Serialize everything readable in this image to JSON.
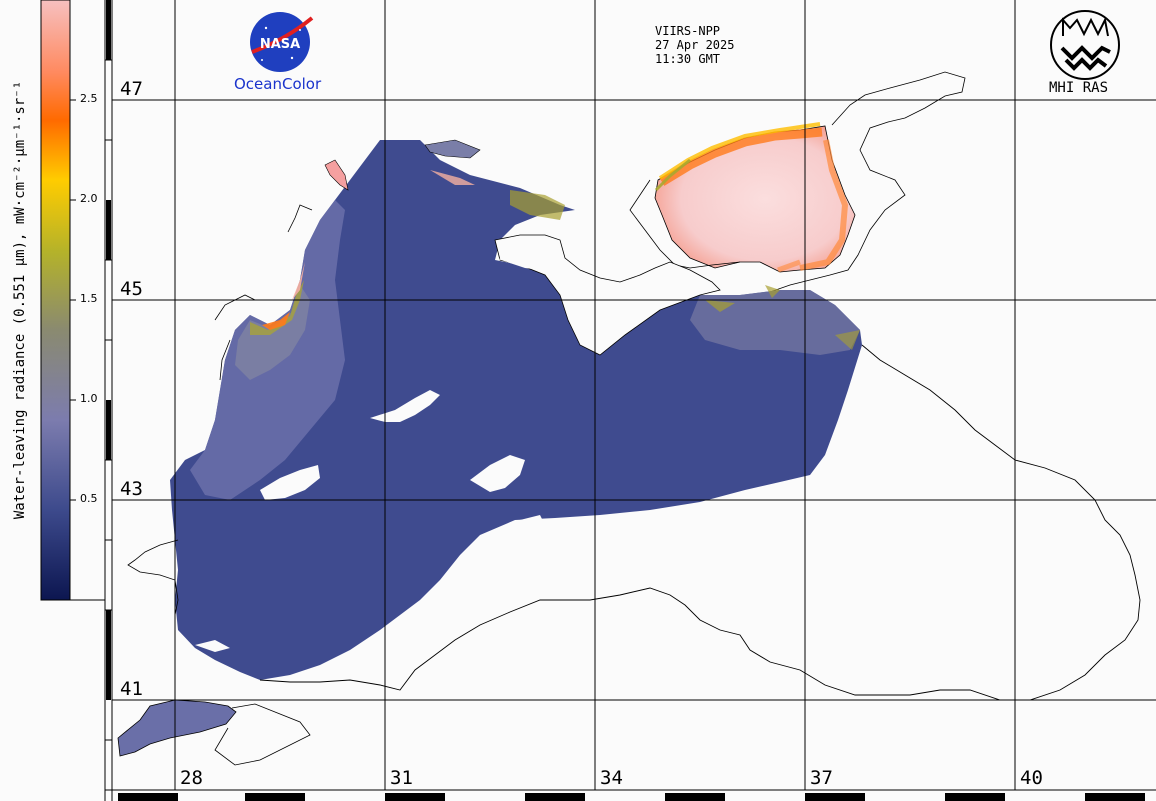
{
  "header": {
    "sensor": "VIIRS-NPP",
    "date": "27 Apr 2025",
    "time": "11:30 GMT"
  },
  "logos": {
    "nasa_wordmark": "NASA",
    "oceancolor": "OceanColor",
    "mhi": "MHI RAS"
  },
  "colorbar": {
    "title": "Water-leaving radiance (0.551 µm), mW·cm⁻²·µm⁻¹·sr⁻¹",
    "ticks": [
      "2.5",
      "2.0",
      "1.5",
      "1.0",
      "0.5"
    ],
    "colors": [
      "#f7b7b7",
      "#ff5a1e",
      "#ffd400",
      "#aab02a",
      "#8d8cb0",
      "#3a4a8c",
      "#10205a"
    ]
  },
  "grid": {
    "latitudes": [
      "47",
      "45",
      "43",
      "41"
    ],
    "longitudes": [
      "28",
      "31",
      "34",
      "37",
      "40"
    ]
  },
  "palette": {
    "sea": "#3f4b8f",
    "sea_light": "#6a6fa8",
    "coastal_green": "#9a9a3a",
    "azov_pink": "#f9d6d6",
    "azov_orange": "#ff7a1a",
    "grid_line": "#000000"
  }
}
